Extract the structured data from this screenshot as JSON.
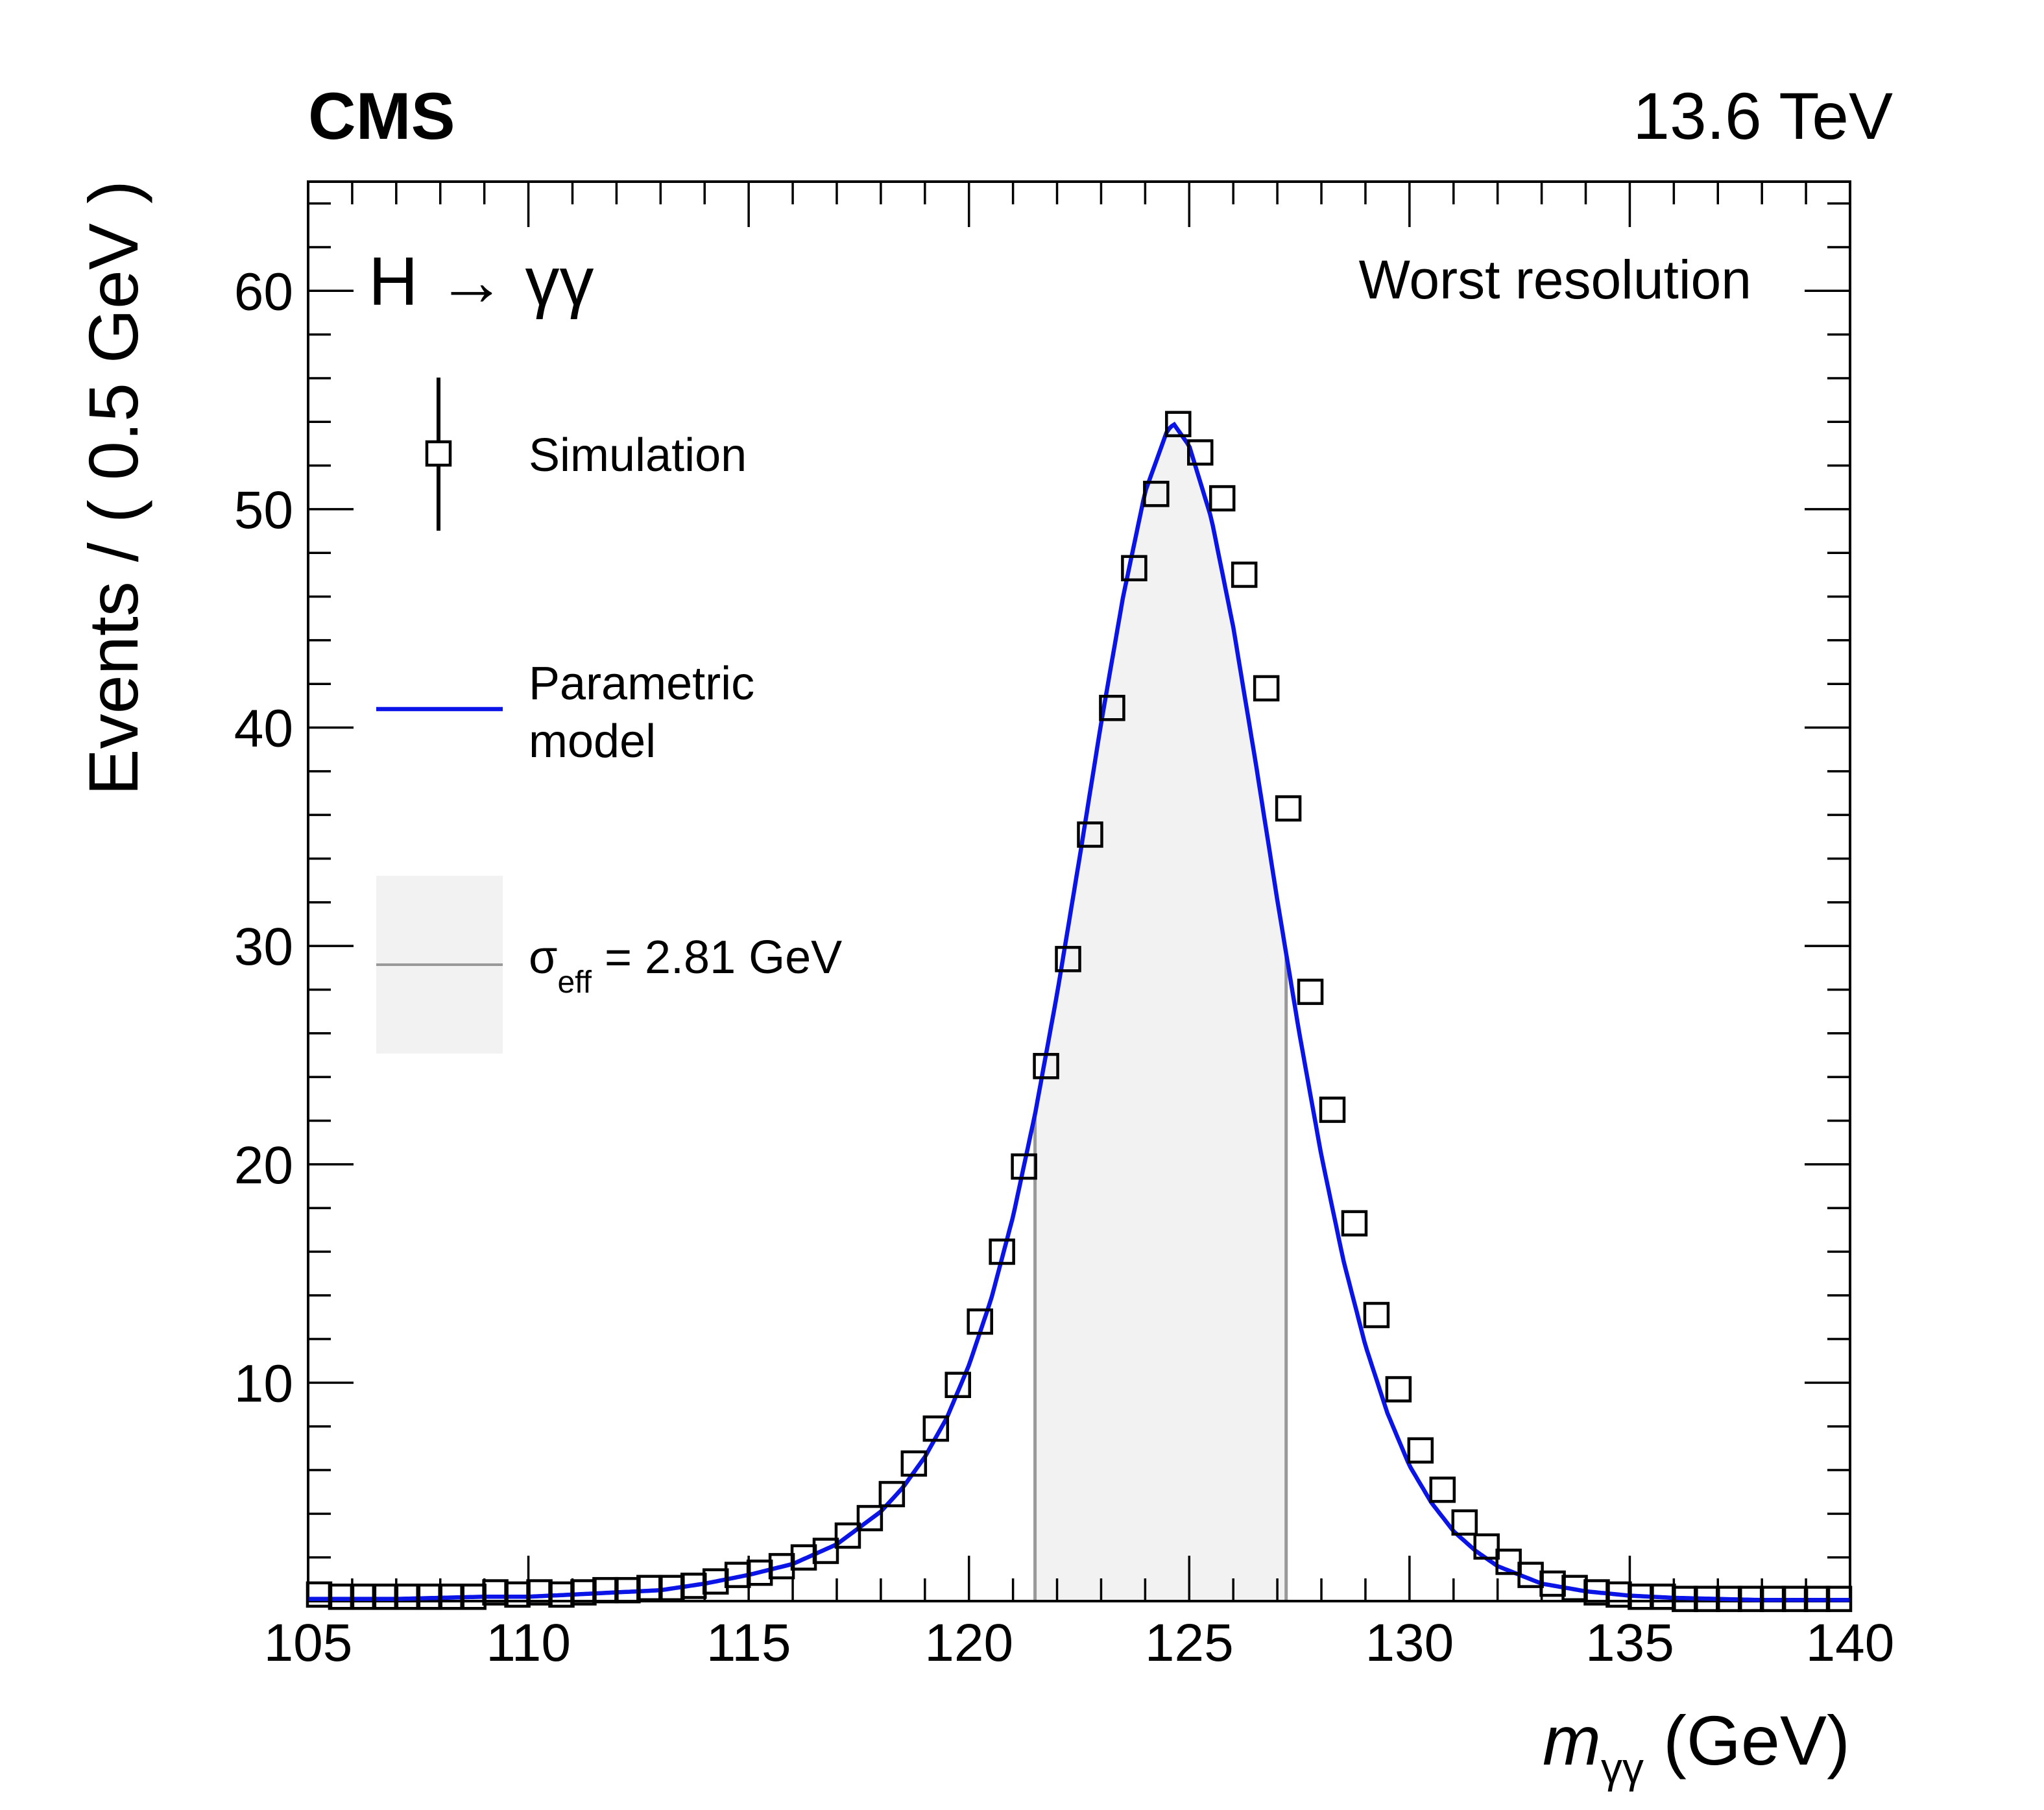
{
  "header": {
    "experiment": "CMS",
    "energy": "13.6 TeV"
  },
  "annotations": {
    "process": "H → γγ",
    "category": "Worst resolution"
  },
  "legend": {
    "simulation": "Simulation",
    "model_line1": "Parametric",
    "model_line2": "model",
    "sigma_symbol": "σ",
    "sigma_sub": "eff",
    "sigma_value": " = 2.81 GeV"
  },
  "axes": {
    "x_symbol": "m",
    "x_sub": "γγ",
    "x_unit": " (GeV)",
    "y_title": "Events / ( 0.5 GeV )"
  },
  "colors": {
    "model": "#0a14e6",
    "band": "#f2f2f2",
    "band_edge": "#999999",
    "markers": "#000000"
  },
  "chart_data": {
    "type": "scatter",
    "xlim": [
      105,
      140
    ],
    "ylim": [
      0,
      65
    ],
    "x_ticks": [
      105,
      110,
      115,
      120,
      125,
      130,
      135,
      140
    ],
    "y_ticks": [
      10,
      20,
      30,
      40,
      50,
      60
    ],
    "sigma_eff": 2.81,
    "band": [
      121.5,
      127.2
    ],
    "legend_position": "top-left",
    "series": [
      {
        "name": "Simulation",
        "marker": "open-square",
        "points": [
          [
            105.25,
            0.3
          ],
          [
            105.75,
            0.2
          ],
          [
            106.25,
            0.2
          ],
          [
            106.75,
            0.2
          ],
          [
            107.25,
            0.2
          ],
          [
            107.75,
            0.2
          ],
          [
            108.25,
            0.2
          ],
          [
            108.75,
            0.2
          ],
          [
            109.25,
            0.4
          ],
          [
            109.75,
            0.3
          ],
          [
            110.25,
            0.4
          ],
          [
            110.75,
            0.3
          ],
          [
            111.25,
            0.4
          ],
          [
            111.75,
            0.5
          ],
          [
            112.25,
            0.5
          ],
          [
            112.75,
            0.6
          ],
          [
            113.25,
            0.6
          ],
          [
            113.75,
            0.7
          ],
          [
            114.25,
            0.9
          ],
          [
            114.75,
            1.2
          ],
          [
            115.25,
            1.3
          ],
          [
            115.75,
            1.6
          ],
          [
            116.25,
            2.0
          ],
          [
            116.75,
            2.3
          ],
          [
            117.25,
            3.0
          ],
          [
            117.75,
            3.8
          ],
          [
            118.25,
            4.9
          ],
          [
            118.75,
            6.3
          ],
          [
            119.25,
            7.9
          ],
          [
            119.75,
            9.9
          ],
          [
            120.25,
            12.8
          ],
          [
            120.75,
            16.0
          ],
          [
            121.25,
            19.9
          ],
          [
            121.75,
            24.5
          ],
          [
            122.25,
            29.4
          ],
          [
            122.75,
            35.1
          ],
          [
            123.25,
            40.9
          ],
          [
            123.75,
            47.3
          ],
          [
            124.25,
            50.7
          ],
          [
            124.75,
            53.9
          ],
          [
            125.25,
            52.6
          ],
          [
            125.75,
            50.5
          ],
          [
            126.25,
            47.0
          ],
          [
            126.75,
            41.8
          ],
          [
            127.25,
            36.3
          ],
          [
            127.75,
            27.9
          ],
          [
            128.25,
            22.5
          ],
          [
            128.75,
            17.3
          ],
          [
            129.25,
            13.1
          ],
          [
            129.75,
            9.7
          ],
          [
            130.25,
            6.9
          ],
          [
            130.75,
            5.1
          ],
          [
            131.25,
            3.6
          ],
          [
            131.75,
            2.5
          ],
          [
            132.25,
            1.8
          ],
          [
            132.75,
            1.2
          ],
          [
            133.25,
            0.8
          ],
          [
            133.75,
            0.6
          ],
          [
            134.25,
            0.4
          ],
          [
            134.75,
            0.3
          ],
          [
            135.25,
            0.2
          ],
          [
            135.75,
            0.2
          ],
          [
            136.25,
            0.1
          ],
          [
            136.75,
            0.1
          ],
          [
            137.25,
            0.1
          ],
          [
            137.75,
            0.1
          ],
          [
            138.25,
            0.1
          ],
          [
            138.75,
            0.1
          ],
          [
            139.25,
            0.1
          ],
          [
            139.75,
            0.1
          ]
        ]
      },
      {
        "name": "Parametric model",
        "type": "line",
        "x": [
          105,
          106,
          107,
          108,
          109,
          110,
          111,
          112,
          113,
          114,
          115,
          116,
          117,
          118,
          118.5,
          119,
          119.5,
          120,
          120.5,
          121,
          121.5,
          122,
          122.5,
          123,
          123.5,
          124,
          124.5,
          124.65,
          125,
          125.5,
          126,
          126.5,
          127,
          127.5,
          128,
          128.5,
          129,
          129.5,
          130,
          130.5,
          131,
          131.5,
          132,
          133,
          134,
          135,
          136,
          137,
          138,
          139,
          140
        ],
        "y": [
          0.1,
          0.1,
          0.1,
          0.15,
          0.2,
          0.2,
          0.3,
          0.4,
          0.5,
          0.8,
          1.2,
          1.7,
          2.6,
          4.1,
          5.2,
          6.6,
          8.4,
          10.8,
          13.8,
          17.6,
          22.3,
          27.8,
          33.9,
          40.2,
          46.0,
          50.8,
          53.6,
          53.9,
          52.9,
          49.6,
          44.6,
          38.5,
          32.1,
          26.0,
          20.4,
          15.6,
          11.7,
          8.6,
          6.2,
          4.5,
          3.2,
          2.3,
          1.6,
          0.8,
          0.45,
          0.25,
          0.15,
          0.1,
          0.05,
          0.05,
          0.05
        ]
      }
    ]
  }
}
